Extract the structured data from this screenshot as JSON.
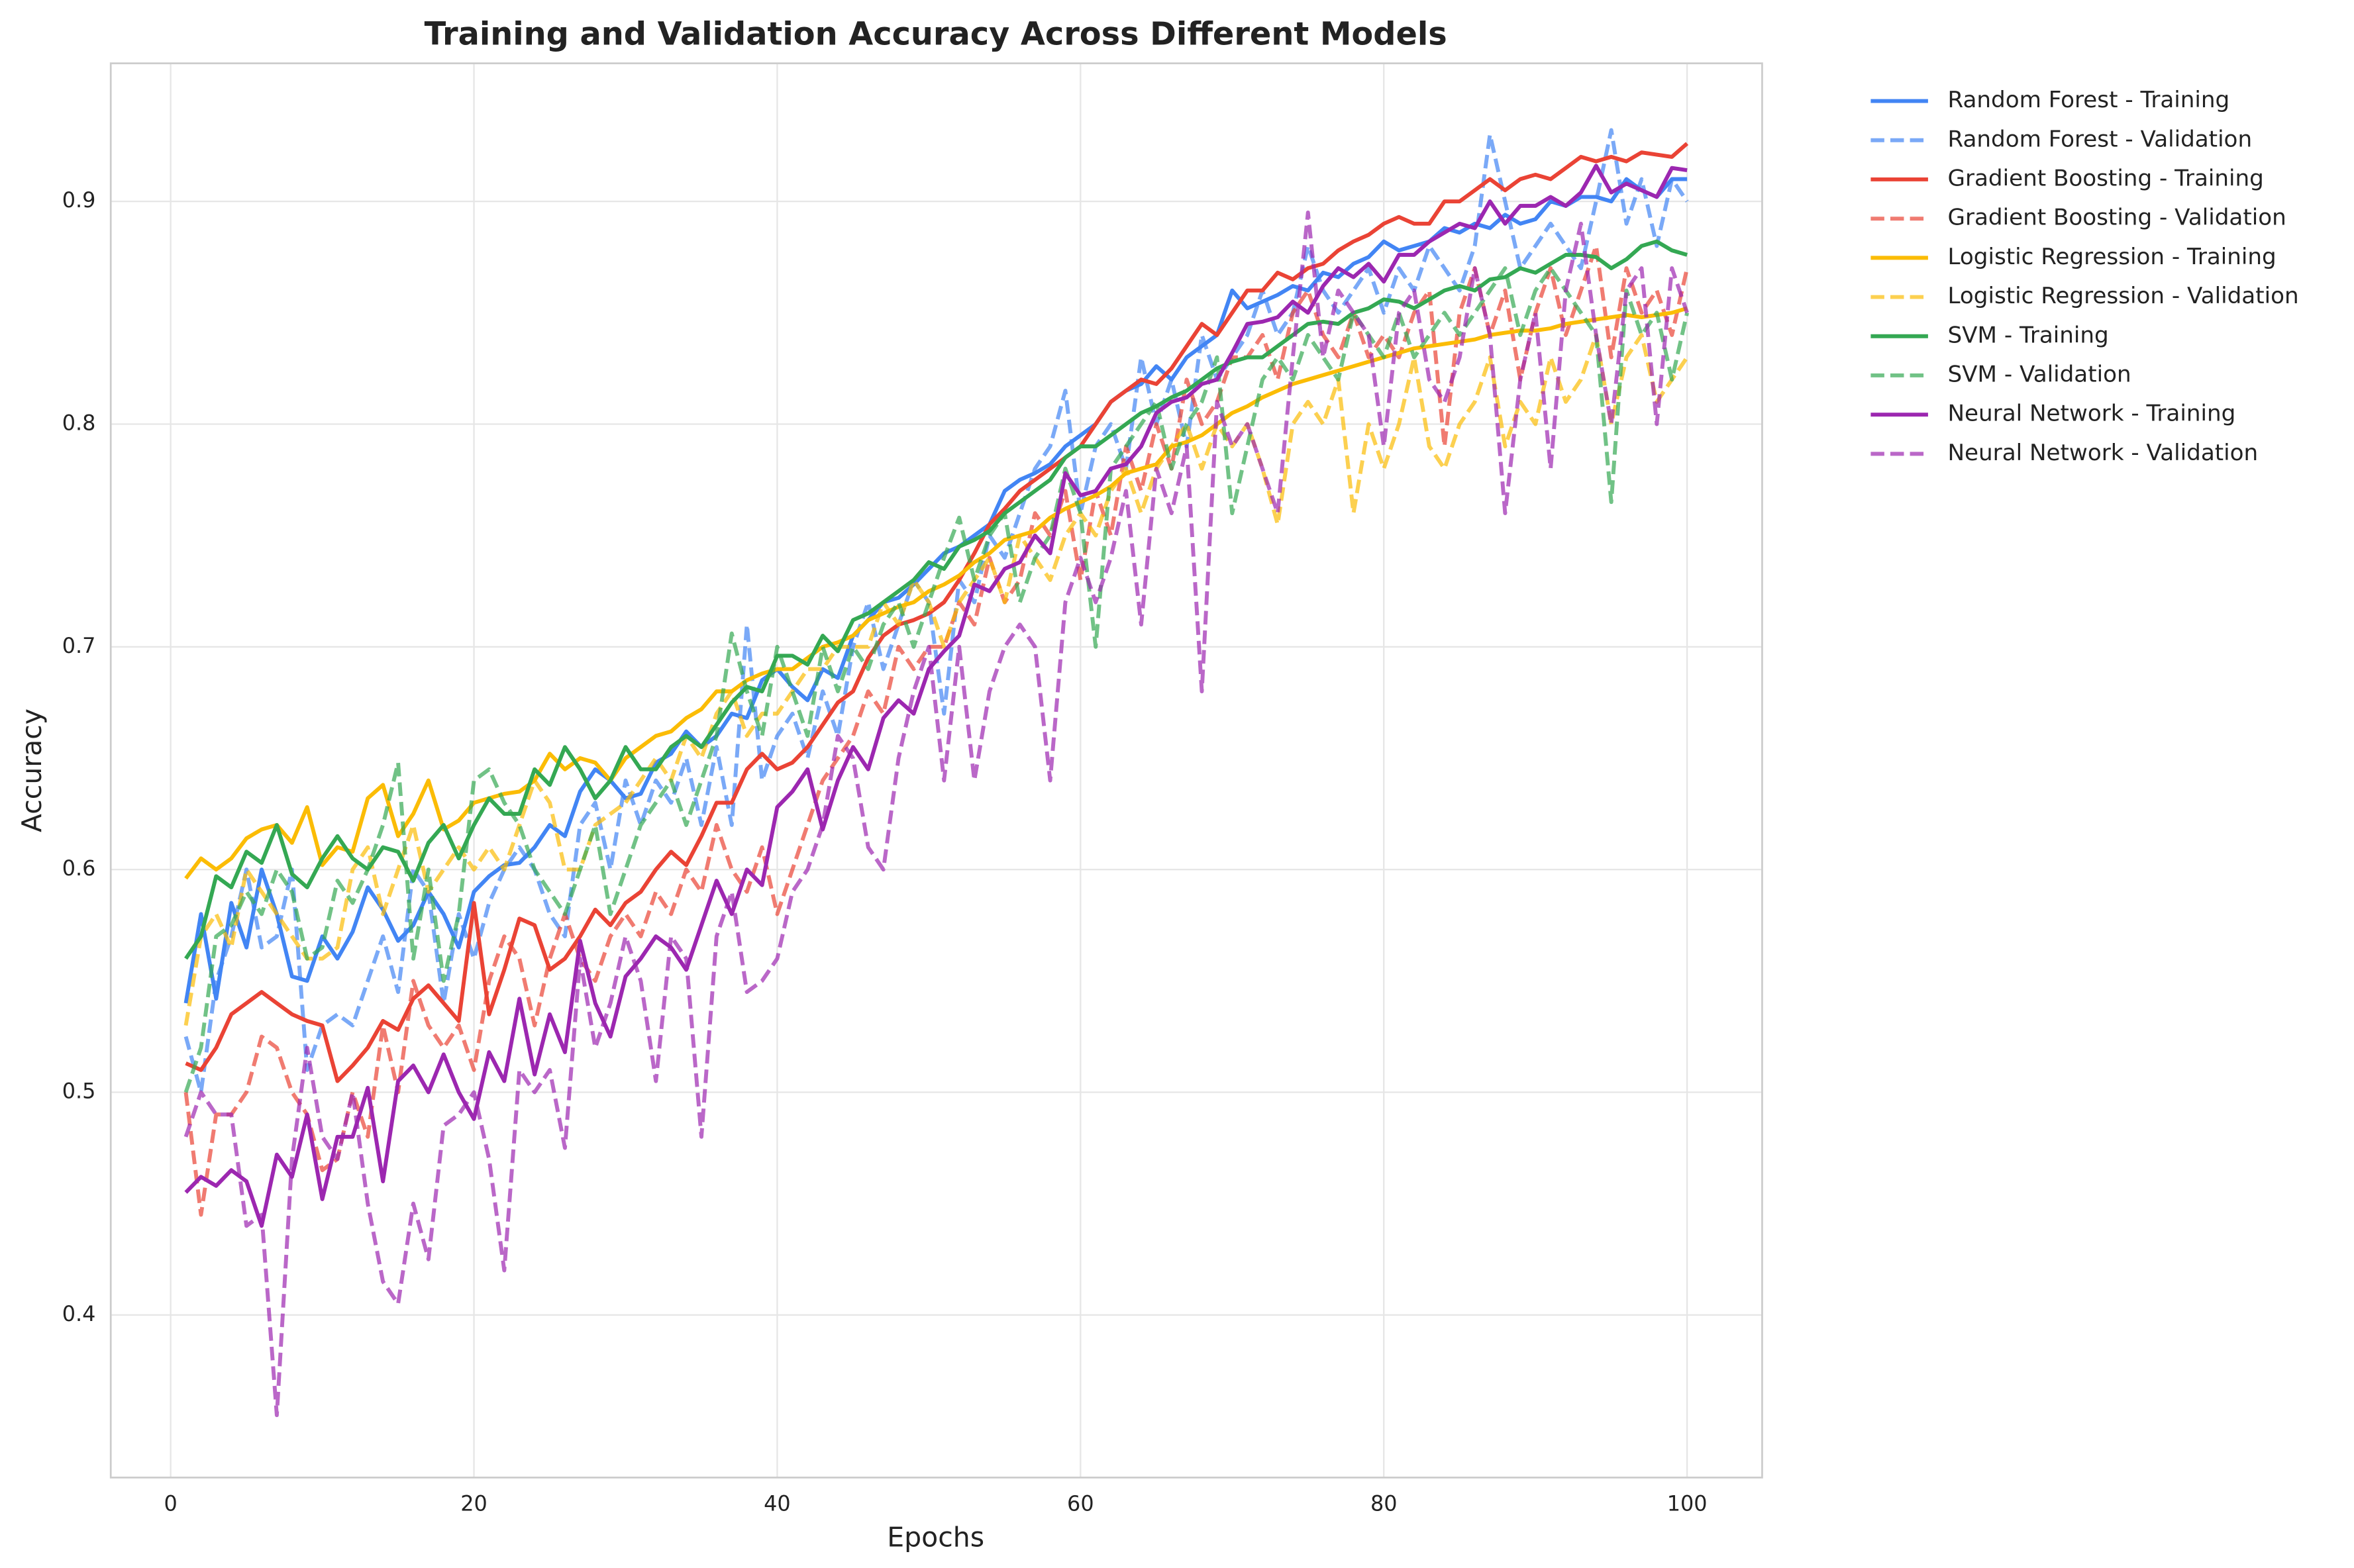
{
  "chart_data": {
    "type": "line",
    "title": "Training and Validation Accuracy Across Different Models",
    "xlabel": "Epochs",
    "ylabel": "Accuracy",
    "xlim": [
      -3.95,
      104.95
    ],
    "ylim": [
      0.327,
      0.962
    ],
    "xticks": [
      0,
      20,
      40,
      60,
      80,
      100
    ],
    "yticks": [
      0.4,
      0.5,
      0.6,
      0.7,
      0.8,
      0.9
    ],
    "grid": true,
    "legend": "outside upper right",
    "x": [
      1,
      2,
      3,
      4,
      5,
      6,
      7,
      8,
      9,
      10,
      11,
      12,
      13,
      14,
      15,
      16,
      17,
      18,
      19,
      20,
      21,
      22,
      23,
      24,
      25,
      26,
      27,
      28,
      29,
      30,
      31,
      32,
      33,
      34,
      35,
      36,
      37,
      38,
      39,
      40,
      41,
      42,
      43,
      44,
      45,
      46,
      47,
      48,
      49,
      50,
      51,
      52,
      53,
      54,
      55,
      56,
      57,
      58,
      59,
      60,
      61,
      62,
      63,
      64,
      65,
      66,
      67,
      68,
      69,
      70,
      71,
      72,
      73,
      74,
      75,
      76,
      77,
      78,
      79,
      80,
      81,
      82,
      83,
      84,
      85,
      86,
      87,
      88,
      89,
      90,
      91,
      92,
      93,
      94,
      95,
      96,
      97,
      98,
      99,
      100
    ],
    "series": [
      {
        "name": "Random Forest - Training",
        "color": "#4285f4",
        "linestyle": "solid",
        "alpha": 1,
        "values": [
          0.54,
          0.58,
          0.542,
          0.585,
          0.565,
          0.6,
          0.58,
          0.552,
          0.55,
          0.57,
          0.56,
          0.572,
          0.592,
          0.582,
          0.568,
          0.575,
          0.59,
          0.58,
          0.565,
          0.59,
          0.597,
          0.602,
          0.603,
          0.61,
          0.62,
          0.615,
          0.635,
          0.645,
          0.64,
          0.632,
          0.634,
          0.648,
          0.652,
          0.662,
          0.655,
          0.66,
          0.67,
          0.668,
          0.685,
          0.69,
          0.682,
          0.676,
          0.69,
          0.686,
          0.705,
          0.712,
          0.72,
          0.722,
          0.728,
          0.735,
          0.742,
          0.745,
          0.75,
          0.755,
          0.77,
          0.775,
          0.778,
          0.782,
          0.79,
          0.795,
          0.8,
          0.81,
          0.815,
          0.818,
          0.826,
          0.82,
          0.83,
          0.835,
          0.84,
          0.86,
          0.852,
          0.855,
          0.858,
          0.862,
          0.86,
          0.868,
          0.866,
          0.872,
          0.875,
          0.882,
          0.878,
          0.88,
          0.882,
          0.888,
          0.886,
          0.89,
          0.888,
          0.894,
          0.89,
          0.892,
          0.9,
          0.898,
          0.902,
          0.902,
          0.9,
          0.91,
          0.905,
          0.902,
          0.91,
          0.91
        ]
      },
      {
        "name": "Random Forest - Validation",
        "color": "#4285f4",
        "linestyle": "dashed",
        "alpha": 0.7,
        "values": [
          0.525,
          0.5,
          0.55,
          0.57,
          0.6,
          0.565,
          0.57,
          0.6,
          0.51,
          0.53,
          0.535,
          0.53,
          0.55,
          0.57,
          0.545,
          0.6,
          0.59,
          0.54,
          0.58,
          0.56,
          0.585,
          0.6,
          0.61,
          0.6,
          0.58,
          0.57,
          0.62,
          0.63,
          0.6,
          0.64,
          0.62,
          0.64,
          0.63,
          0.65,
          0.62,
          0.655,
          0.62,
          0.71,
          0.64,
          0.66,
          0.67,
          0.65,
          0.68,
          0.66,
          0.7,
          0.72,
          0.69,
          0.71,
          0.73,
          0.72,
          0.67,
          0.73,
          0.72,
          0.75,
          0.74,
          0.76,
          0.78,
          0.79,
          0.815,
          0.76,
          0.79,
          0.8,
          0.78,
          0.83,
          0.8,
          0.82,
          0.79,
          0.84,
          0.82,
          0.83,
          0.84,
          0.86,
          0.84,
          0.85,
          0.88,
          0.86,
          0.85,
          0.86,
          0.87,
          0.85,
          0.87,
          0.86,
          0.88,
          0.87,
          0.86,
          0.88,
          0.93,
          0.9,
          0.87,
          0.88,
          0.89,
          0.88,
          0.87,
          0.9,
          0.932,
          0.89,
          0.91,
          0.88,
          0.91,
          0.9
        ]
      },
      {
        "name": "Gradient Boosting - Training",
        "color": "#ea4335",
        "linestyle": "solid",
        "alpha": 1,
        "values": [
          0.513,
          0.51,
          0.52,
          0.535,
          0.54,
          0.545,
          0.54,
          0.535,
          0.532,
          0.53,
          0.505,
          0.512,
          0.52,
          0.532,
          0.528,
          0.542,
          0.548,
          0.54,
          0.532,
          0.585,
          0.535,
          0.555,
          0.578,
          0.575,
          0.555,
          0.56,
          0.57,
          0.582,
          0.575,
          0.585,
          0.59,
          0.6,
          0.608,
          0.602,
          0.615,
          0.63,
          0.63,
          0.645,
          0.652,
          0.645,
          0.648,
          0.655,
          0.665,
          0.675,
          0.68,
          0.695,
          0.705,
          0.71,
          0.712,
          0.715,
          0.72,
          0.73,
          0.742,
          0.755,
          0.762,
          0.77,
          0.775,
          0.78,
          0.785,
          0.79,
          0.8,
          0.81,
          0.815,
          0.82,
          0.818,
          0.825,
          0.835,
          0.845,
          0.84,
          0.85,
          0.86,
          0.86,
          0.868,
          0.865,
          0.87,
          0.872,
          0.878,
          0.882,
          0.885,
          0.89,
          0.893,
          0.89,
          0.89,
          0.9,
          0.9,
          0.905,
          0.91,
          0.905,
          0.91,
          0.912,
          0.91,
          0.915,
          0.92,
          0.918,
          0.92,
          0.918,
          0.922,
          0.921,
          0.92,
          0.926
        ]
      },
      {
        "name": "Gradient Boosting - Validation",
        "color": "#ea4335",
        "linestyle": "dashed",
        "alpha": 0.7,
        "values": [
          0.5,
          0.445,
          0.49,
          0.49,
          0.5,
          0.525,
          0.52,
          0.5,
          0.49,
          0.465,
          0.47,
          0.5,
          0.48,
          0.53,
          0.5,
          0.55,
          0.53,
          0.52,
          0.53,
          0.51,
          0.55,
          0.57,
          0.56,
          0.53,
          0.56,
          0.58,
          0.56,
          0.55,
          0.57,
          0.58,
          0.57,
          0.59,
          0.58,
          0.6,
          0.59,
          0.62,
          0.6,
          0.59,
          0.61,
          0.58,
          0.6,
          0.62,
          0.64,
          0.65,
          0.66,
          0.68,
          0.67,
          0.7,
          0.69,
          0.7,
          0.7,
          0.72,
          0.71,
          0.74,
          0.72,
          0.73,
          0.76,
          0.75,
          0.77,
          0.73,
          0.77,
          0.75,
          0.79,
          0.77,
          0.8,
          0.78,
          0.82,
          0.8,
          0.81,
          0.83,
          0.83,
          0.84,
          0.82,
          0.85,
          0.86,
          0.84,
          0.83,
          0.85,
          0.83,
          0.84,
          0.83,
          0.85,
          0.86,
          0.79,
          0.85,
          0.87,
          0.84,
          0.86,
          0.82,
          0.85,
          0.87,
          0.84,
          0.86,
          0.88,
          0.83,
          0.87,
          0.85,
          0.86,
          0.84,
          0.87
        ]
      },
      {
        "name": "Logistic Regression - Training",
        "color": "#fbbc05",
        "linestyle": "solid",
        "alpha": 1,
        "values": [
          0.596,
          0.605,
          0.6,
          0.605,
          0.614,
          0.618,
          0.62,
          0.612,
          0.628,
          0.602,
          0.61,
          0.608,
          0.632,
          0.638,
          0.615,
          0.625,
          0.64,
          0.618,
          0.622,
          0.63,
          0.632,
          0.634,
          0.635,
          0.64,
          0.652,
          0.645,
          0.65,
          0.648,
          0.64,
          0.65,
          0.655,
          0.66,
          0.662,
          0.668,
          0.672,
          0.68,
          0.68,
          0.685,
          0.688,
          0.69,
          0.69,
          0.695,
          0.7,
          0.702,
          0.705,
          0.712,
          0.715,
          0.718,
          0.72,
          0.725,
          0.728,
          0.732,
          0.738,
          0.742,
          0.748,
          0.75,
          0.752,
          0.758,
          0.762,
          0.765,
          0.768,
          0.772,
          0.778,
          0.78,
          0.782,
          0.79,
          0.792,
          0.795,
          0.8,
          0.805,
          0.808,
          0.812,
          0.815,
          0.818,
          0.82,
          0.822,
          0.824,
          0.826,
          0.828,
          0.83,
          0.832,
          0.834,
          0.835,
          0.836,
          0.837,
          0.838,
          0.84,
          0.841,
          0.842,
          0.842,
          0.843,
          0.845,
          0.846,
          0.847,
          0.848,
          0.849,
          0.848,
          0.849,
          0.85,
          0.852
        ]
      },
      {
        "name": "Logistic Regression - Validation",
        "color": "#fbbc05",
        "linestyle": "dashed",
        "alpha": 0.7,
        "values": [
          0.53,
          0.57,
          0.58,
          0.565,
          0.6,
          0.59,
          0.58,
          0.57,
          0.56,
          0.56,
          0.565,
          0.6,
          0.61,
          0.58,
          0.6,
          0.62,
          0.59,
          0.6,
          0.61,
          0.6,
          0.61,
          0.6,
          0.62,
          0.64,
          0.63,
          0.6,
          0.6,
          0.62,
          0.625,
          0.63,
          0.64,
          0.65,
          0.64,
          0.66,
          0.65,
          0.67,
          0.68,
          0.66,
          0.67,
          0.67,
          0.68,
          0.69,
          0.69,
          0.7,
          0.7,
          0.7,
          0.72,
          0.71,
          0.73,
          0.72,
          0.7,
          0.72,
          0.73,
          0.74,
          0.72,
          0.75,
          0.74,
          0.73,
          0.75,
          0.76,
          0.75,
          0.77,
          0.78,
          0.76,
          0.78,
          0.79,
          0.8,
          0.78,
          0.8,
          0.79,
          0.8,
          0.78,
          0.755,
          0.8,
          0.81,
          0.8,
          0.82,
          0.76,
          0.8,
          0.78,
          0.8,
          0.83,
          0.79,
          0.78,
          0.8,
          0.81,
          0.83,
          0.79,
          0.81,
          0.8,
          0.83,
          0.81,
          0.82,
          0.84,
          0.8,
          0.83,
          0.84,
          0.81,
          0.82,
          0.83
        ]
      },
      {
        "name": "SVM - Training",
        "color": "#34a853",
        "linestyle": "solid",
        "alpha": 1,
        "values": [
          0.56,
          0.57,
          0.597,
          0.592,
          0.608,
          0.603,
          0.62,
          0.598,
          0.592,
          0.605,
          0.615,
          0.605,
          0.6,
          0.61,
          0.608,
          0.595,
          0.612,
          0.62,
          0.605,
          0.62,
          0.632,
          0.625,
          0.625,
          0.645,
          0.638,
          0.655,
          0.645,
          0.632,
          0.64,
          0.655,
          0.645,
          0.645,
          0.655,
          0.66,
          0.655,
          0.665,
          0.675,
          0.682,
          0.68,
          0.696,
          0.696,
          0.692,
          0.705,
          0.698,
          0.712,
          0.715,
          0.72,
          0.725,
          0.73,
          0.738,
          0.735,
          0.745,
          0.748,
          0.752,
          0.76,
          0.765,
          0.77,
          0.775,
          0.785,
          0.79,
          0.79,
          0.795,
          0.8,
          0.805,
          0.808,
          0.812,
          0.815,
          0.82,
          0.825,
          0.828,
          0.83,
          0.83,
          0.835,
          0.84,
          0.845,
          0.846,
          0.845,
          0.85,
          0.852,
          0.856,
          0.855,
          0.852,
          0.856,
          0.86,
          0.862,
          0.86,
          0.865,
          0.866,
          0.87,
          0.868,
          0.872,
          0.876,
          0.876,
          0.875,
          0.87,
          0.874,
          0.88,
          0.882,
          0.878,
          0.876
        ]
      },
      {
        "name": "SVM - Validation",
        "color": "#34a853",
        "linestyle": "dashed",
        "alpha": 0.7,
        "values": [
          0.5,
          0.52,
          0.57,
          0.575,
          0.59,
          0.58,
          0.6,
          0.59,
          0.56,
          0.565,
          0.595,
          0.585,
          0.6,
          0.62,
          0.648,
          0.56,
          0.6,
          0.55,
          0.58,
          0.64,
          0.645,
          0.63,
          0.62,
          0.6,
          0.59,
          0.58,
          0.6,
          0.62,
          0.58,
          0.6,
          0.62,
          0.63,
          0.64,
          0.62,
          0.64,
          0.66,
          0.706,
          0.68,
          0.66,
          0.7,
          0.68,
          0.66,
          0.7,
          0.68,
          0.7,
          0.69,
          0.71,
          0.72,
          0.7,
          0.72,
          0.74,
          0.758,
          0.73,
          0.75,
          0.76,
          0.72,
          0.74,
          0.75,
          0.78,
          0.76,
          0.7,
          0.78,
          0.79,
          0.8,
          0.81,
          0.78,
          0.8,
          0.81,
          0.83,
          0.76,
          0.79,
          0.82,
          0.83,
          0.82,
          0.84,
          0.83,
          0.82,
          0.85,
          0.84,
          0.83,
          0.85,
          0.83,
          0.84,
          0.85,
          0.84,
          0.85,
          0.86,
          0.87,
          0.84,
          0.86,
          0.87,
          0.86,
          0.85,
          0.84,
          0.765,
          0.86,
          0.84,
          0.85,
          0.82,
          0.85
        ]
      },
      {
        "name": "Neural Network - Training",
        "color": "#9c27b0",
        "linestyle": "solid",
        "alpha": 1,
        "values": [
          0.455,
          0.462,
          0.458,
          0.465,
          0.46,
          0.44,
          0.472,
          0.462,
          0.49,
          0.452,
          0.48,
          0.48,
          0.502,
          0.46,
          0.505,
          0.512,
          0.5,
          0.517,
          0.5,
          0.488,
          0.518,
          0.505,
          0.542,
          0.508,
          0.535,
          0.518,
          0.568,
          0.54,
          0.525,
          0.552,
          0.56,
          0.57,
          0.565,
          0.555,
          0.575,
          0.595,
          0.58,
          0.6,
          0.593,
          0.628,
          0.635,
          0.645,
          0.618,
          0.64,
          0.655,
          0.645,
          0.668,
          0.676,
          0.67,
          0.69,
          0.698,
          0.705,
          0.728,
          0.725,
          0.735,
          0.738,
          0.75,
          0.742,
          0.778,
          0.768,
          0.77,
          0.78,
          0.782,
          0.79,
          0.805,
          0.81,
          0.812,
          0.818,
          0.82,
          0.832,
          0.845,
          0.846,
          0.848,
          0.855,
          0.85,
          0.862,
          0.87,
          0.866,
          0.872,
          0.864,
          0.876,
          0.876,
          0.882,
          0.886,
          0.89,
          0.888,
          0.9,
          0.89,
          0.898,
          0.898,
          0.902,
          0.898,
          0.904,
          0.916,
          0.904,
          0.908,
          0.905,
          0.902,
          0.915,
          0.914
        ]
      },
      {
        "name": "Neural Network - Validation",
        "color": "#9c27b0",
        "linestyle": "dashed",
        "alpha": 0.7,
        "values": [
          0.48,
          0.5,
          0.49,
          0.49,
          0.44,
          0.445,
          0.355,
          0.47,
          0.52,
          0.48,
          0.47,
          0.5,
          0.45,
          0.415,
          0.405,
          0.45,
          0.425,
          0.485,
          0.49,
          0.5,
          0.47,
          0.42,
          0.51,
          0.5,
          0.51,
          0.475,
          0.56,
          0.52,
          0.54,
          0.57,
          0.55,
          0.505,
          0.57,
          0.56,
          0.48,
          0.57,
          0.59,
          0.545,
          0.55,
          0.56,
          0.59,
          0.6,
          0.62,
          0.66,
          0.65,
          0.61,
          0.6,
          0.65,
          0.68,
          0.7,
          0.64,
          0.7,
          0.64,
          0.68,
          0.7,
          0.71,
          0.7,
          0.64,
          0.72,
          0.74,
          0.72,
          0.74,
          0.77,
          0.71,
          0.78,
          0.76,
          0.79,
          0.68,
          0.81,
          0.79,
          0.8,
          0.78,
          0.76,
          0.83,
          0.895,
          0.83,
          0.86,
          0.85,
          0.84,
          0.79,
          0.85,
          0.86,
          0.82,
          0.81,
          0.83,
          0.87,
          0.84,
          0.76,
          0.82,
          0.85,
          0.78,
          0.86,
          0.89,
          0.84,
          0.8,
          0.86,
          0.87,
          0.8,
          0.87,
          0.85
        ]
      }
    ]
  }
}
